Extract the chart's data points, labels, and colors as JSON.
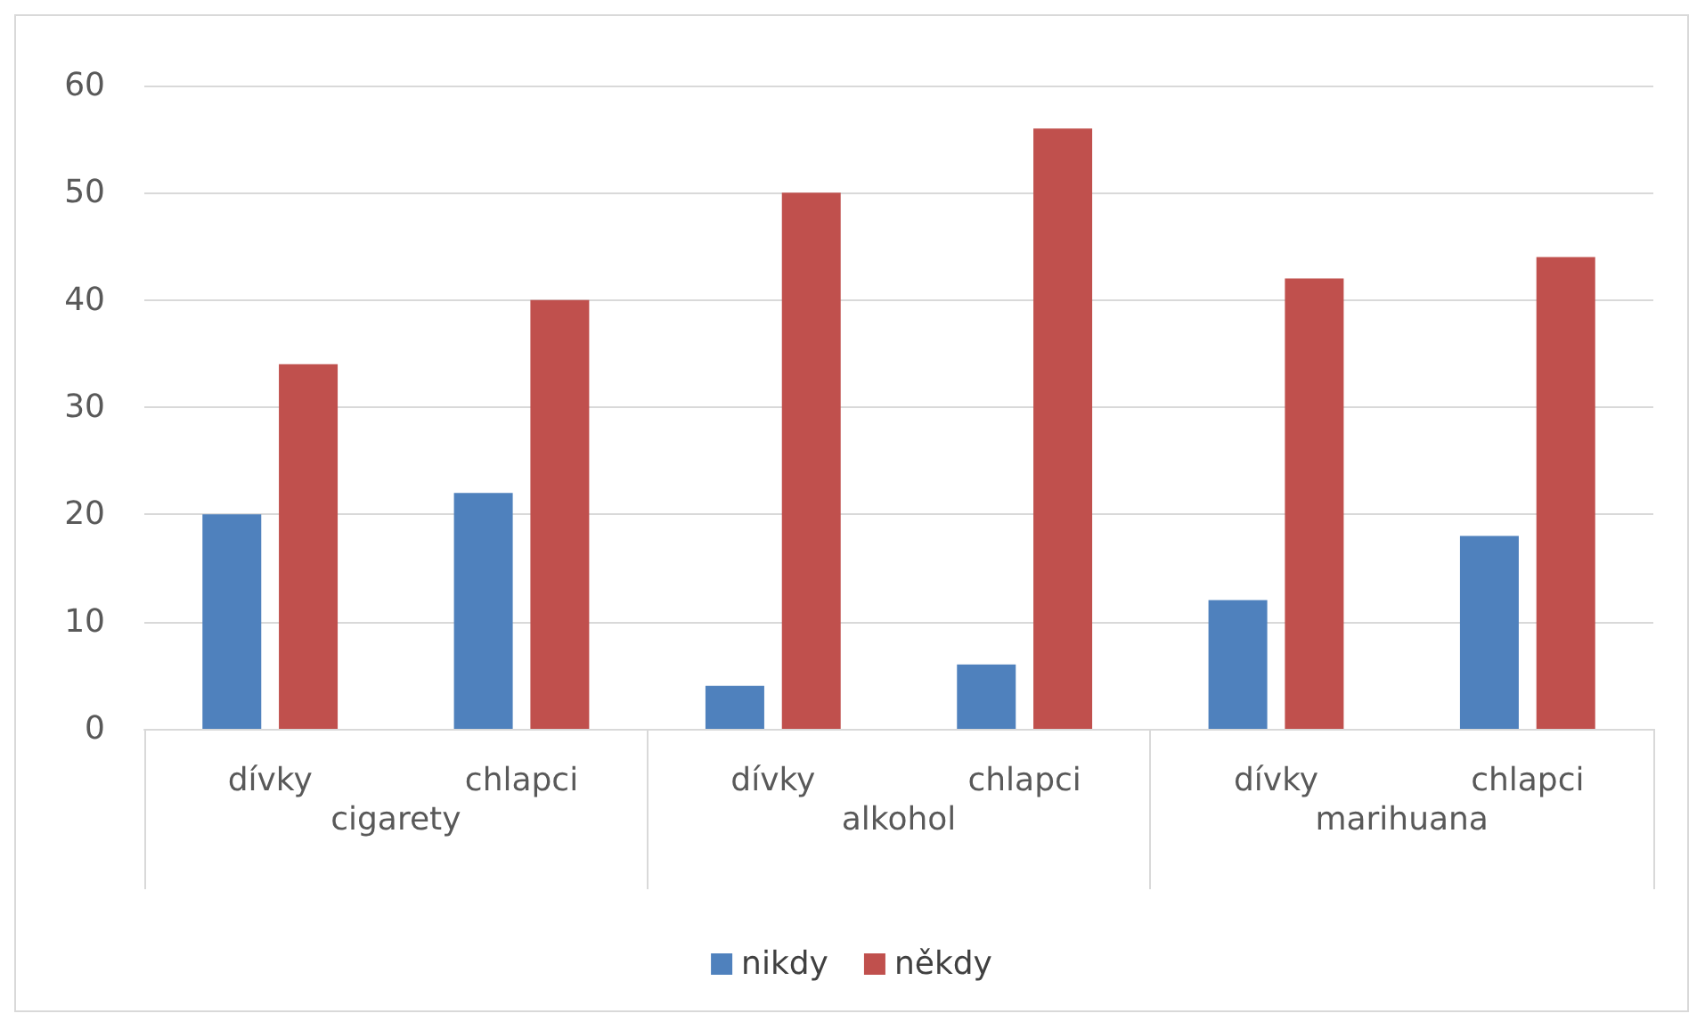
{
  "chart_data": {
    "type": "bar",
    "categories": [
      "dívky",
      "chlapci",
      "dívky",
      "chlapci",
      "dívky",
      "chlapci"
    ],
    "annotations": [
      "cigarety",
      "alkohol",
      "marihuana"
    ],
    "series": [
      {
        "name": "nikdy",
        "color": "#4f81bd",
        "values": [
          20,
          22,
          4,
          6,
          12,
          18
        ]
      },
      {
        "name": "někdy",
        "color": "#c0504d",
        "values": [
          34,
          40,
          50,
          56,
          42,
          44
        ]
      }
    ],
    "ylim": [
      0,
      60
    ],
    "yticks": [
      0,
      10,
      20,
      30,
      40,
      50,
      60
    ],
    "grid": "y",
    "legend": "bottom"
  }
}
